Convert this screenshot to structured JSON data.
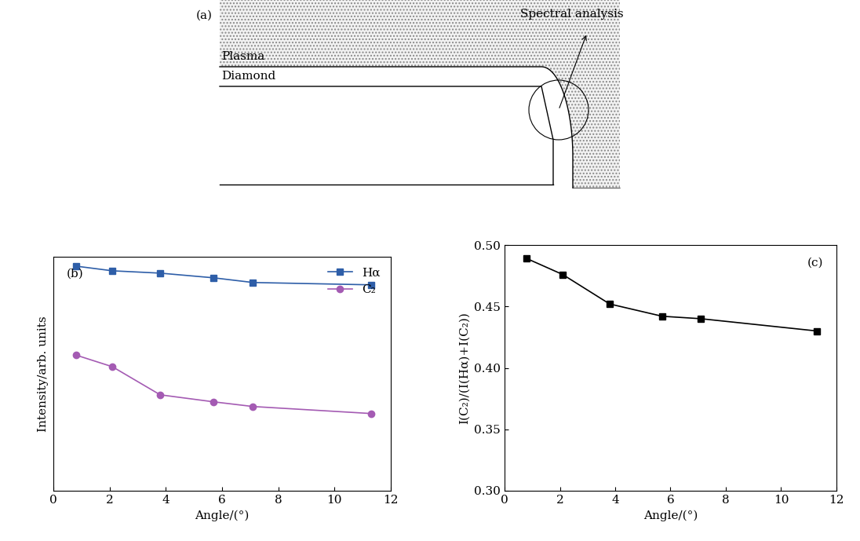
{
  "diagram": {
    "label": "(a)",
    "regions": [
      "Plasma",
      "Diamond"
    ],
    "annotation": "Spectral analysis"
  },
  "chart_data": [
    {
      "type": "line",
      "title": "(b)",
      "x_label": "Angle/(°)",
      "y_label": "Intensity/arb. units",
      "x": [
        0.8,
        2.1,
        3.8,
        5.7,
        7.1,
        11.3
      ],
      "series": [
        {
          "name": "Hα",
          "color": "#2e5ea8",
          "marker": "square",
          "values": [
            0.96,
            0.94,
            0.93,
            0.91,
            0.89,
            0.88
          ]
        },
        {
          "name": "C₂",
          "color": "#a45bb3",
          "marker": "circle",
          "values": [
            0.58,
            0.53,
            0.41,
            0.38,
            0.36,
            0.33
          ]
        }
      ],
      "xlim": [
        0,
        12
      ],
      "xticks": [
        0,
        2,
        4,
        6,
        8,
        10,
        12
      ],
      "ylim": [
        0,
        1
      ],
      "yticks": [],
      "tick_labels": "x",
      "legend": "upper right"
    },
    {
      "type": "line",
      "title": "(c)",
      "x_label": "Angle/(°)",
      "y_label": "I(C₂)/(I(Hα)+I(C₂))",
      "x": [
        0.8,
        2.1,
        3.8,
        5.7,
        7.1,
        11.3
      ],
      "series": [
        {
          "name": null,
          "color": "#000000",
          "marker": "square",
          "values": [
            0.489,
            0.476,
            0.452,
            0.442,
            0.44,
            0.43
          ]
        }
      ],
      "xlim": [
        0,
        12
      ],
      "xticks": [
        0,
        2,
        4,
        6,
        8,
        10,
        12
      ],
      "ylim": [
        0.3,
        0.5
      ],
      "yticks": [
        {
          "value": 0.3,
          "label": "0.30"
        },
        0.35,
        {
          "value": 0.4,
          "label": "0.40"
        },
        0.45,
        {
          "value": 0.5,
          "label": "0.50"
        }
      ]
    }
  ]
}
